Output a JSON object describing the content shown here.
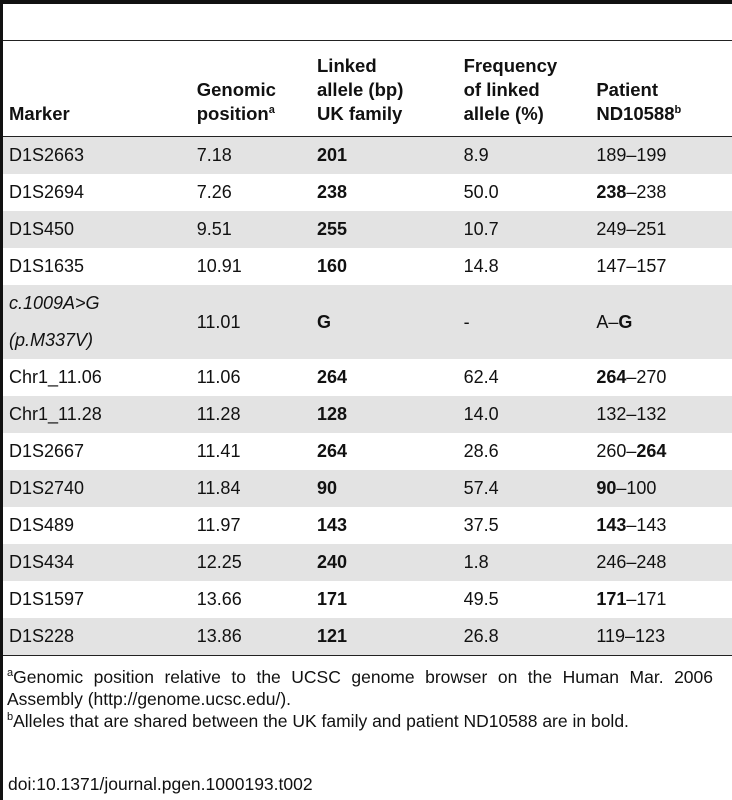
{
  "table": {
    "headers": {
      "marker": "Marker",
      "genomic_line1": "Genomic",
      "genomic_line2": "position",
      "genomic_sup": "a",
      "linked_line1": "Linked",
      "linked_line2": "allele (bp)",
      "linked_line3": "UK family",
      "freq_line1": "Frequency",
      "freq_line2": "of linked",
      "freq_line3": "allele (%)",
      "patient_line1": "Patient",
      "patient_line2": "ND10588",
      "patient_sup": "b"
    },
    "rows": [
      {
        "marker": "D1S2663",
        "position": "7.18",
        "linked": "201",
        "freq": "8.9",
        "p_a": "189",
        "p_sep": "–",
        "p_b": "199",
        "p_bold_a": false,
        "p_bold_b": false
      },
      {
        "marker": "D1S2694",
        "position": "7.26",
        "linked": "238",
        "freq": "50.0",
        "p_a": "238",
        "p_sep": "–",
        "p_b": "238",
        "p_bold_a": true,
        "p_bold_b": false
      },
      {
        "marker": "D1S450",
        "position": "9.51",
        "linked": "255",
        "freq": "10.7",
        "p_a": "249",
        "p_sep": "–",
        "p_b": "251",
        "p_bold_a": false,
        "p_bold_b": false
      },
      {
        "marker": "D1S1635",
        "position": "10.91",
        "linked": "160",
        "freq": "14.8",
        "p_a": "147",
        "p_sep": "–",
        "p_b": "157",
        "p_bold_a": false,
        "p_bold_b": false
      },
      {
        "marker": "c.1009A>G (p.M337V)",
        "position": "11.01",
        "linked": "G",
        "freq": "-",
        "p_a": "A",
        "p_sep": "–",
        "p_b": "G",
        "p_bold_a": false,
        "p_bold_b": true,
        "italic": true
      },
      {
        "marker": "Chr1_11.06",
        "position": "11.06",
        "linked": "264",
        "freq": "62.4",
        "p_a": "264",
        "p_sep": "–",
        "p_b": "270",
        "p_bold_a": true,
        "p_bold_b": false
      },
      {
        "marker": "Chr1_11.28",
        "position": "11.28",
        "linked": "128",
        "freq": "14.0",
        "p_a": "132",
        "p_sep": "–",
        "p_b": "132",
        "p_bold_a": false,
        "p_bold_b": false
      },
      {
        "marker": "D1S2667",
        "position": "11.41",
        "linked": "264",
        "freq": "28.6",
        "p_a": "260",
        "p_sep": "–",
        "p_b": "264",
        "p_bold_a": false,
        "p_bold_b": true
      },
      {
        "marker": "D1S2740",
        "position": "11.84",
        "linked": "90",
        "freq": "57.4",
        "p_a": "90",
        "p_sep": "–",
        "p_b": "100",
        "p_bold_a": true,
        "p_bold_b": false
      },
      {
        "marker": "D1S489",
        "position": "11.97",
        "linked": "143",
        "freq": "37.5",
        "p_a": "143",
        "p_sep": "–",
        "p_b": "143",
        "p_bold_a": true,
        "p_bold_b": false
      },
      {
        "marker": "D1S434",
        "position": "12.25",
        "linked": "240",
        "freq": "1.8",
        "p_a": "246",
        "p_sep": "–",
        "p_b": "248",
        "p_bold_a": false,
        "p_bold_b": false
      },
      {
        "marker": "D1S1597",
        "position": "13.66",
        "linked": "171",
        "freq": "49.5",
        "p_a": "171",
        "p_sep": "–",
        "p_b": "171",
        "p_bold_a": true,
        "p_bold_b": false
      },
      {
        "marker": "D1S228",
        "position": "13.86",
        "linked": "121",
        "freq": "26.8",
        "p_a": "119",
        "p_sep": "–",
        "p_b": "123",
        "p_bold_a": false,
        "p_bold_b": false
      }
    ]
  },
  "footnotes": {
    "a_sup": "a",
    "a_text": "Genomic position relative to the UCSC genome browser on the Human Mar. 2006 Assembly (http://genome.ucsc.edu/).",
    "b_sup": "b",
    "b_text": "Alleles that are shared between the UK family and patient ND10588 are in bold."
  },
  "doi": "doi:10.1371/journal.pgen.1000193.t002",
  "colors": {
    "row_shade": "#e3e3e3",
    "rule": "#222222"
  }
}
